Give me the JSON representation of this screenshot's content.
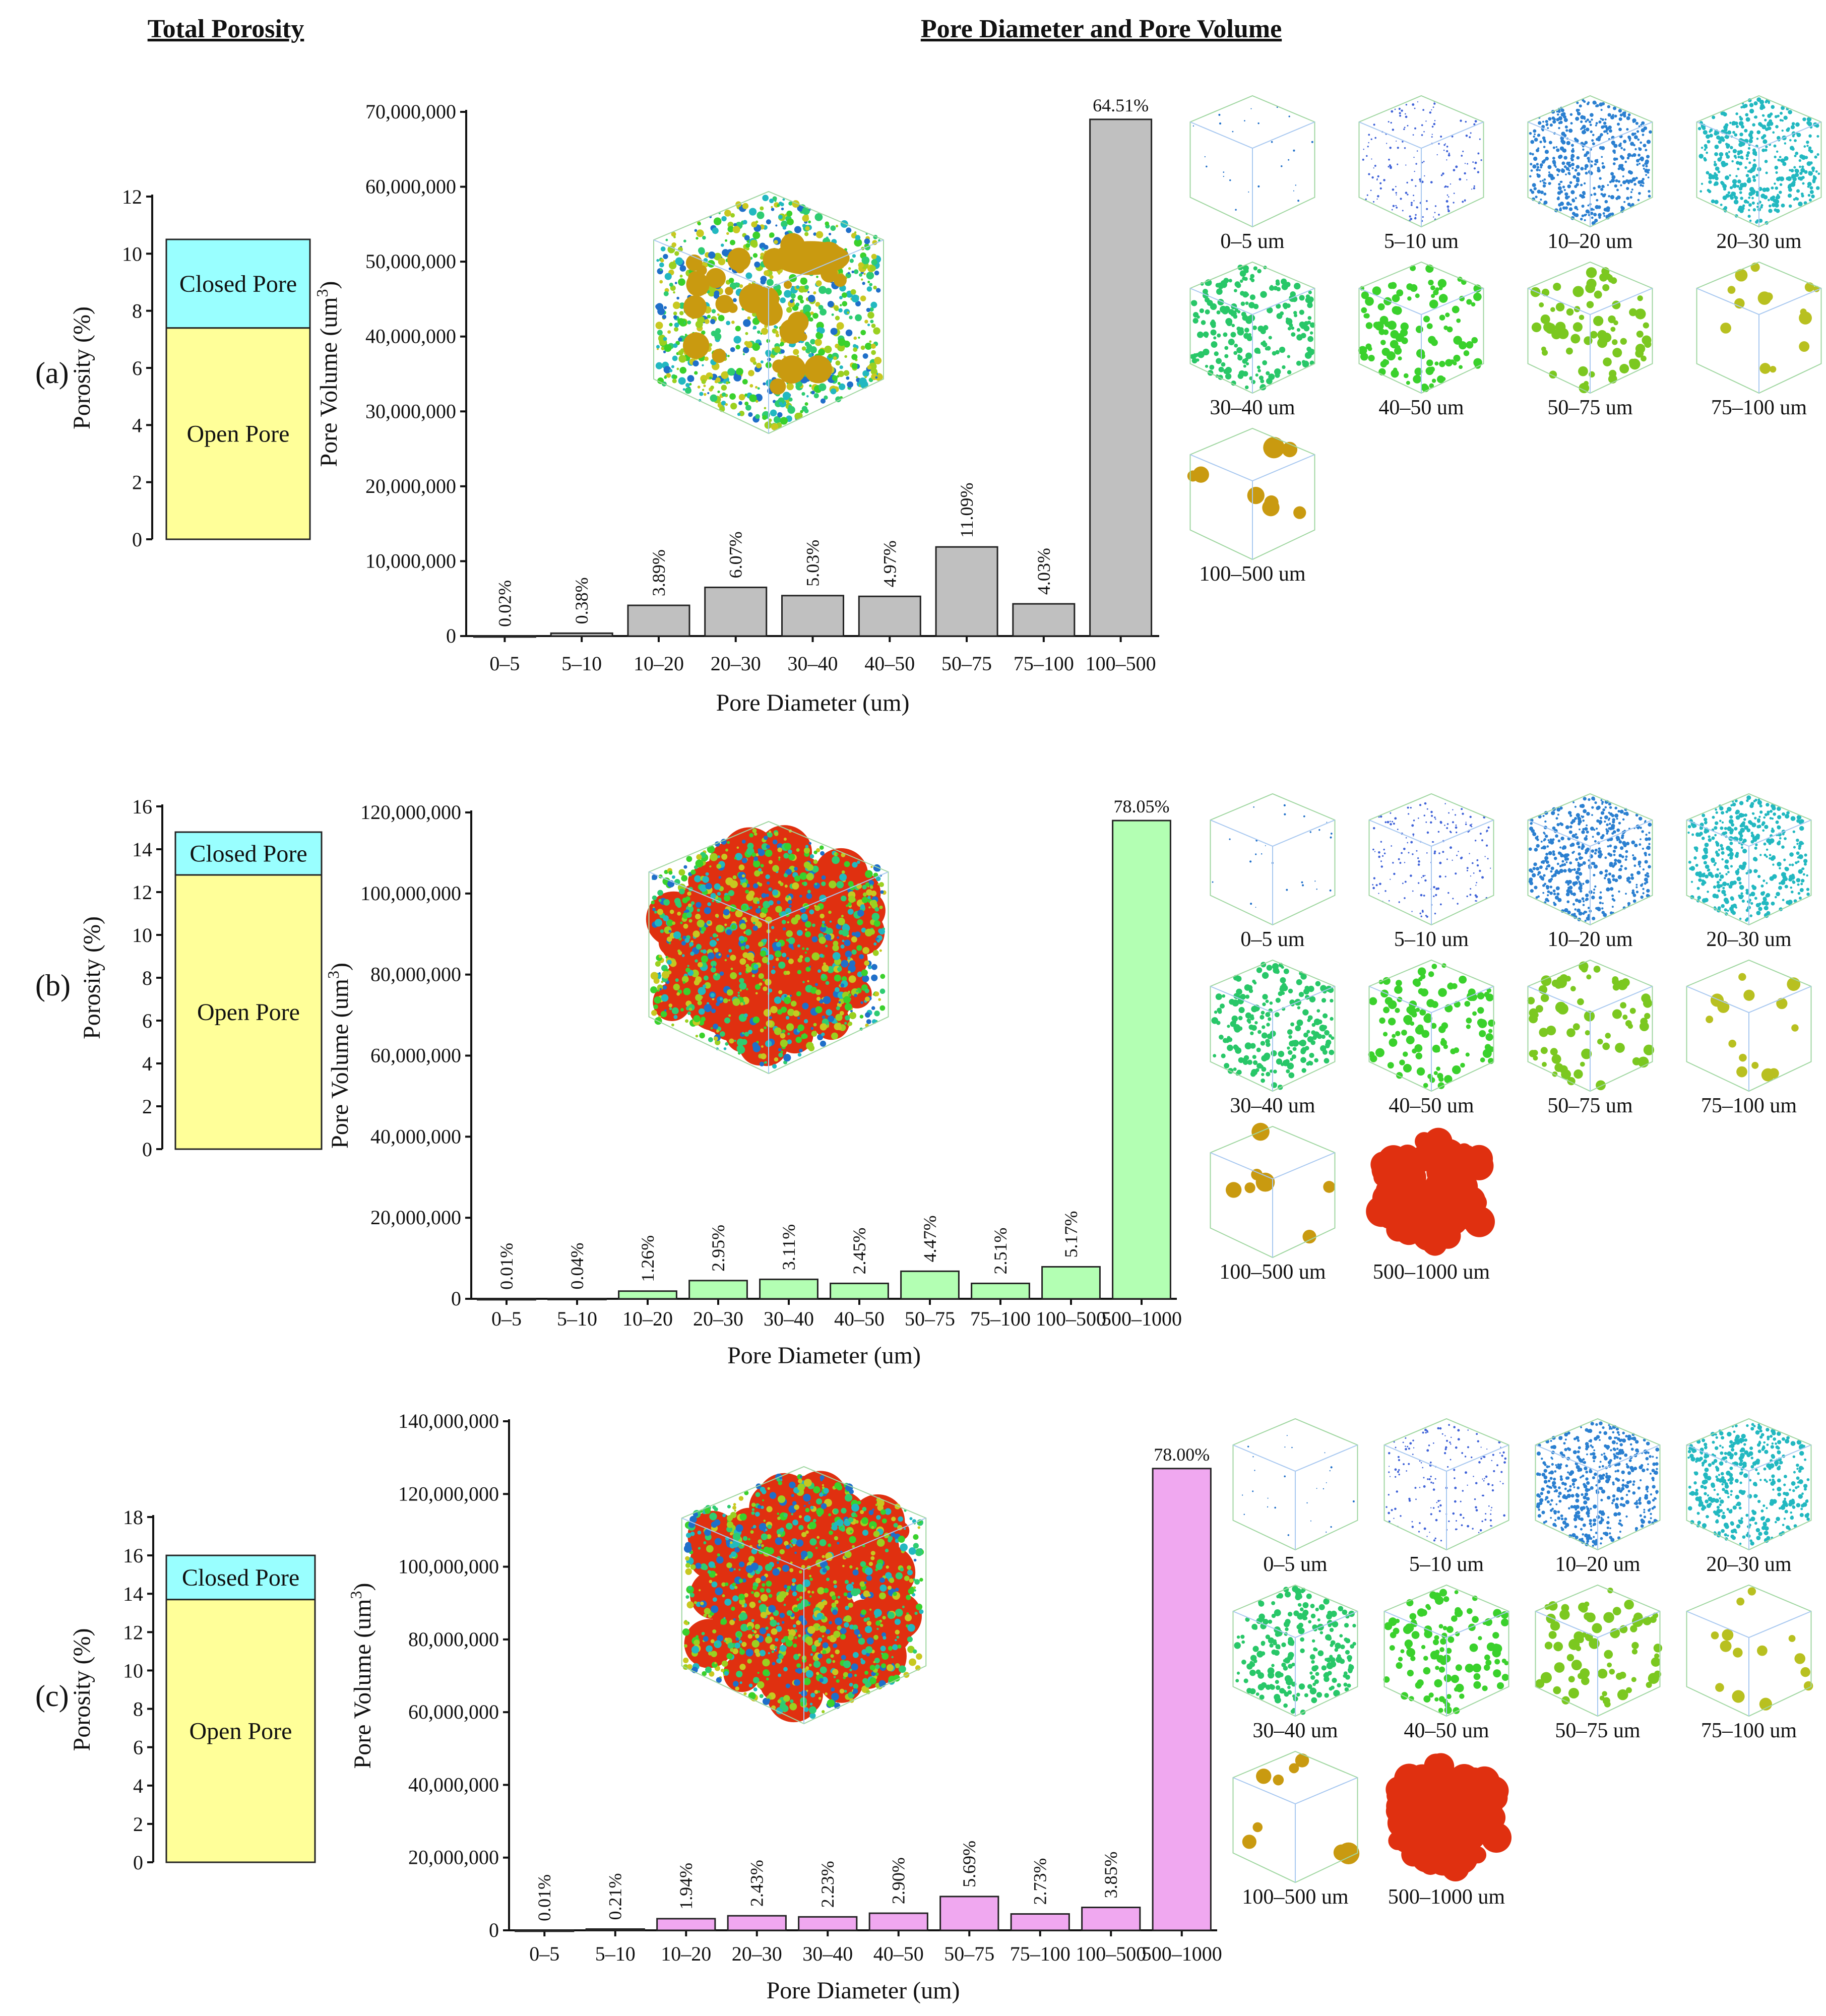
{
  "headers": {
    "left": "Total Porosity",
    "right": "Pore Diameter and Pore Volume"
  },
  "colors": {
    "open_pore": "#ffff99",
    "closed_pore": "#99ffff",
    "bar_a": "#c0c0c0",
    "bar_b": "#b3ffb3",
    "bar_c": "#f0a8f0",
    "pore_small": "#1f6fc9",
    "pore_mid": "#2ecc71",
    "pore_large": "#c99a10",
    "pore_huge": "#e03010"
  },
  "panels": [
    {
      "label": "(a)",
      "porosity": {
        "ylabel": "Porosity (%)",
        "ylim": [
          0,
          12
        ],
        "ticks": [
          "0",
          "2",
          "4",
          "6",
          "8",
          "10",
          "12"
        ],
        "open_pore": 7.4,
        "total": 10.5,
        "open_label": "Open Pore",
        "closed_label": "Closed Pore"
      },
      "chart_data": {
        "type": "bar",
        "categories": [
          "0–5",
          "5–10",
          "10–20",
          "20–30",
          "30–40",
          "40–50",
          "50–75",
          "75–100",
          "100–500"
        ],
        "values": [
          10000,
          380000,
          4100000,
          6500000,
          5400000,
          5300000,
          11900000,
          4300000,
          69000000
        ],
        "percent_labels": [
          "0.02%",
          "0.38%",
          "3.89%",
          "6.07%",
          "5.03%",
          "4.97%",
          "11.09%",
          "4.03%",
          "64.51%"
        ],
        "ylim": [
          0,
          70000000
        ],
        "yticks": [
          "0",
          "10,000,000",
          "20,000,000",
          "30,000,000",
          "40,000,000",
          "50,000,000",
          "60,000,000",
          "70,000,000"
        ],
        "xlabel": "Pore Diameter (um)",
        "ylabel": "Pore Volume (um",
        "ylabel_sup": "3",
        "ylabel_end": ")"
      },
      "thumbs": [
        "0–5 um",
        "5–10 um",
        "10–20 um",
        "20–30 um",
        "30–40 um",
        "40–50 um",
        "50–75 um",
        "75–100 um",
        "100–500 um"
      ]
    },
    {
      "label": "(b)",
      "porosity": {
        "ylabel": "Porosity (%)",
        "ylim": [
          0,
          16
        ],
        "ticks": [
          "0",
          "2",
          "4",
          "6",
          "8",
          "10",
          "12",
          "14",
          "16"
        ],
        "open_pore": 12.8,
        "total": 14.8,
        "open_label": "Open Pore",
        "closed_label": "Closed Pore"
      },
      "chart_data": {
        "type": "bar",
        "categories": [
          "0–5",
          "5–10",
          "10–20",
          "20–30",
          "30–40",
          "40–50",
          "50–75",
          "75–100",
          "100–500",
          "500–1000"
        ],
        "values": [
          15000,
          60000,
          1900000,
          4500000,
          4800000,
          3800000,
          6800000,
          3800000,
          7900000,
          118000000
        ],
        "percent_labels": [
          "0.01%",
          "0.04%",
          "1.26%",
          "2.95%",
          "3.11%",
          "2.45%",
          "4.47%",
          "2.51%",
          "5.17%",
          "78.05%"
        ],
        "ylim": [
          0,
          120000000
        ],
        "yticks": [
          "0",
          "20,000,000",
          "40,000,000",
          "60,000,000",
          "80,000,000",
          "100,000,000",
          "120,000,000"
        ],
        "xlabel": "Pore Diameter (um)",
        "ylabel": "Pore Volume (um",
        "ylabel_sup": "3",
        "ylabel_end": ")"
      },
      "thumbs": [
        "0–5 um",
        "5–10 um",
        "10–20 um",
        "20–30 um",
        "30–40 um",
        "40–50 um",
        "50–75 um",
        "75–100 um",
        "100–500 um",
        "500–1000 um"
      ]
    },
    {
      "label": "(c)",
      "porosity": {
        "ylabel": "Porosity (%)",
        "ylim": [
          0,
          18
        ],
        "ticks": [
          "0",
          "2",
          "4",
          "6",
          "8",
          "10",
          "12",
          "14",
          "16",
          "18"
        ],
        "open_pore": 13.7,
        "total": 16.0,
        "open_label": "Open Pore",
        "closed_label": "Closed Pore"
      },
      "chart_data": {
        "type": "bar",
        "categories": [
          "0–5",
          "5–10",
          "10–20",
          "20–30",
          "30–40",
          "40–50",
          "50–75",
          "75–100",
          "100–500",
          "500–1000"
        ],
        "values": [
          15000,
          350000,
          3200000,
          4000000,
          3700000,
          4700000,
          9300000,
          4500000,
          6300000,
          127000000
        ],
        "percent_labels": [
          "0.01%",
          "0.21%",
          "1.94%",
          "2.43%",
          "2.23%",
          "2.90%",
          "5.69%",
          "2.73%",
          "3.85%",
          "78.00%"
        ],
        "ylim": [
          0,
          140000000
        ],
        "yticks": [
          "0",
          "20,000,000",
          "40,000,000",
          "60,000,000",
          "80,000,000",
          "100,000,000",
          "120,000,000",
          "140,000,000"
        ],
        "xlabel": "Pore Diameter (um)",
        "ylabel": "Pore Volume (um",
        "ylabel_sup": "3",
        "ylabel_end": ")"
      },
      "thumbs": [
        "0–5 um",
        "5–10 um",
        "10–20 um",
        "20–30 um",
        "30–40 um",
        "40–50 um",
        "50–75 um",
        "75–100 um",
        "100–500 um",
        "500–1000 um"
      ]
    }
  ]
}
